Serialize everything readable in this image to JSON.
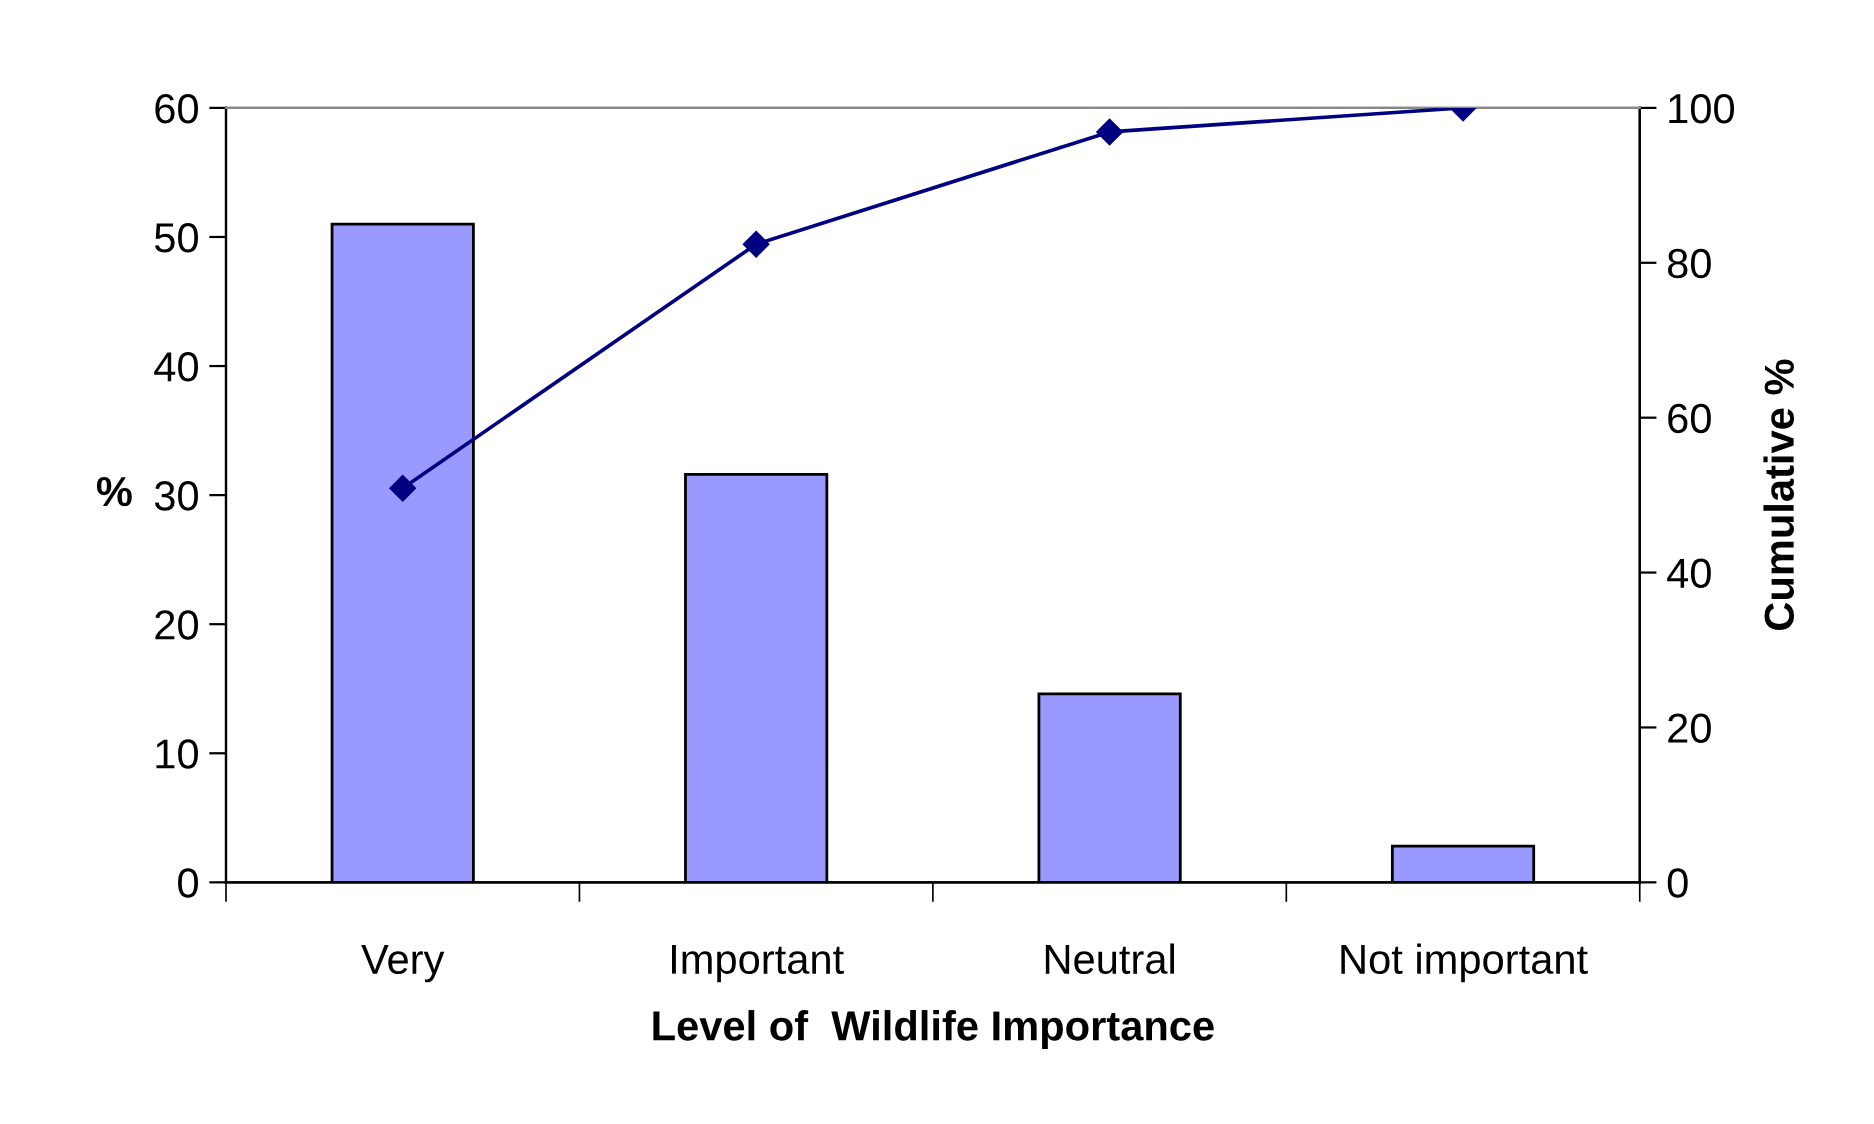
{
  "chart_data": {
    "type": "bar",
    "xlabel": "Level of  Wildlife Importance",
    "ylabel": "%",
    "y2label": "Cumulative %",
    "categories": [
      "Very",
      "Important",
      "Neutral",
      "Not important"
    ],
    "series": [
      {
        "color": "#9999ff",
        "values": [
          51,
          31.6,
          14.6,
          2.8
        ]
      },
      {
        "type": "line",
        "axis": "y2",
        "color": "#000080",
        "marker": "diamond",
        "values": [
          50.9,
          82.4,
          96.9,
          100
        ]
      }
    ],
    "ylim": [
      0,
      60
    ],
    "yticks": [
      0,
      10,
      20,
      30,
      40,
      50,
      60
    ],
    "y2lim": [
      0,
      100
    ],
    "y2ticks": [
      0,
      20,
      40,
      60,
      80,
      100
    ],
    "grid": false,
    "legend": false
  }
}
